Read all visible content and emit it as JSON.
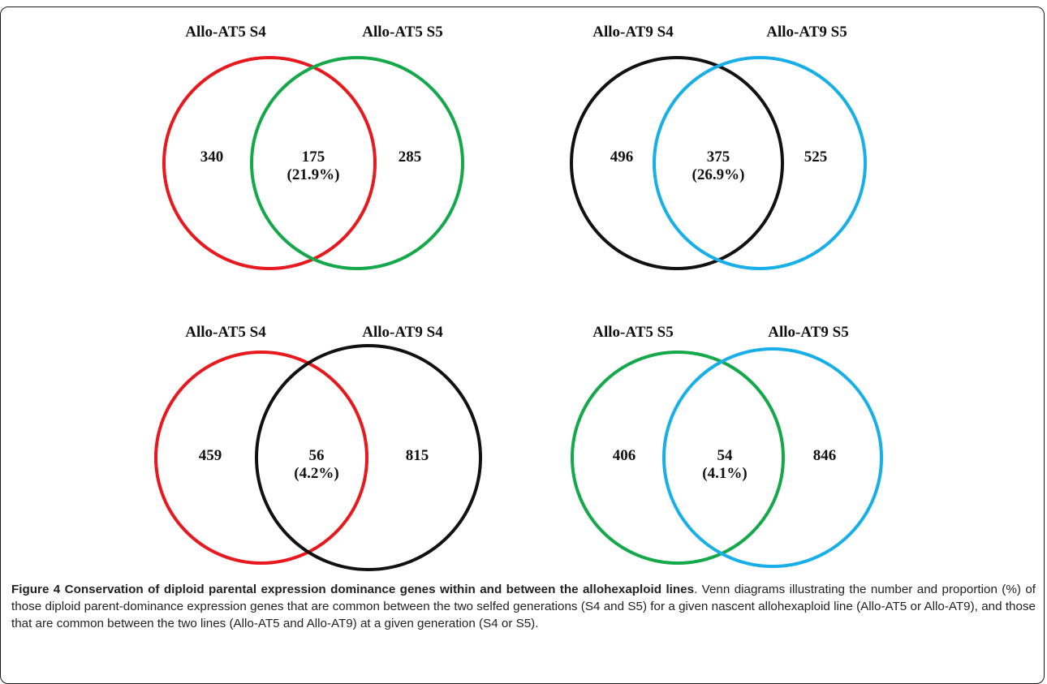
{
  "diagrams": [
    {
      "left": {
        "title": "Allo-AT5 S4",
        "count": "340",
        "color": "#e8191e"
      },
      "right": {
        "title": "Allo-AT5 S5",
        "count": "285",
        "color": "#15a84b"
      },
      "overlap": {
        "count": "175",
        "percent": "(21.9%)"
      }
    },
    {
      "left": {
        "title": "Allo-AT9 S4",
        "count": "496",
        "color": "#111111"
      },
      "right": {
        "title": "Allo-AT9 S5",
        "count": "525",
        "color": "#18aee8"
      },
      "overlap": {
        "count": "375",
        "percent": "(26.9%)"
      }
    },
    {
      "left": {
        "title": "Allo-AT5 S4",
        "count": "459",
        "color": "#e8191e"
      },
      "right": {
        "title": "Allo-AT9 S4",
        "count": "815",
        "color": "#111111"
      },
      "overlap": {
        "count": "56",
        "percent": "(4.2%)"
      }
    },
    {
      "left": {
        "title": "Allo-AT5 S5",
        "count": "406",
        "color": "#15a84b"
      },
      "right": {
        "title": "Allo-AT9 S5",
        "count": "846",
        "color": "#18aee8"
      },
      "overlap": {
        "count": "54",
        "percent": "(4.1%)"
      }
    }
  ],
  "caption": {
    "title": "Figure 4 Conservation of diploid parental expression dominance genes within and between the allohexaploid lines",
    "text": ". Venn diagrams illustrating the number and proportion (%) of those diploid parent-dominance expression genes that are common between the two selfed generations (S4 and S5) for a given nascent allohexaploid line (Allo-AT5 or Allo-AT9), and those that are common between the two lines (Allo-AT5 and Allo-AT9) at a given generation (S4 or S5)."
  }
}
